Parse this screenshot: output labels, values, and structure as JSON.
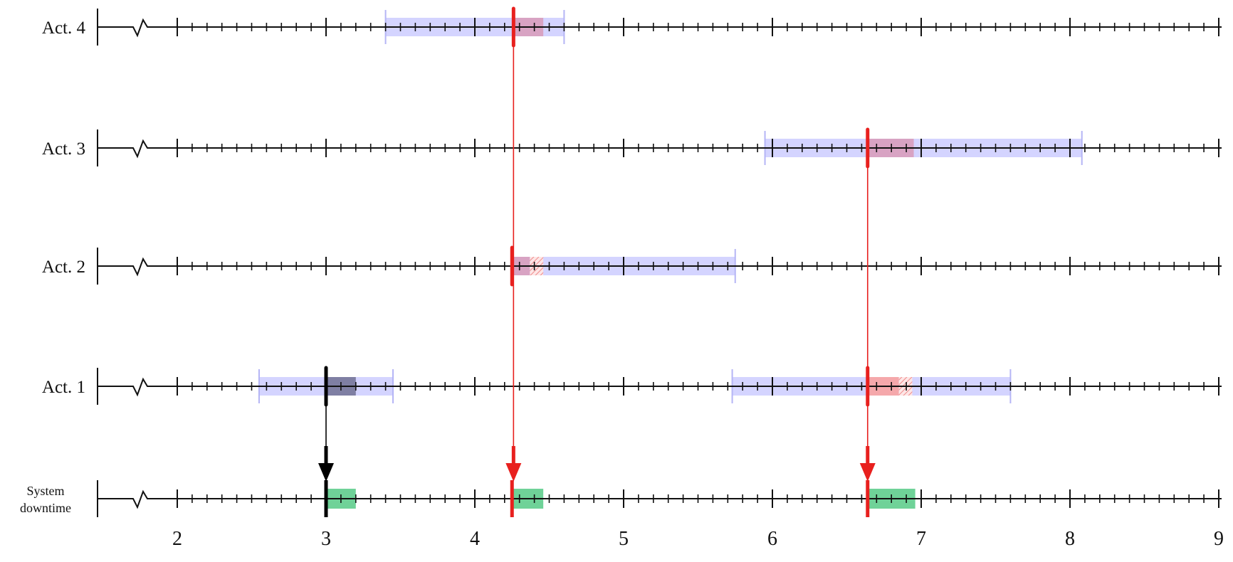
{
  "diagram": {
    "axis": {
      "min": 1.5,
      "max": 9,
      "major_ticks": [
        2,
        3,
        4,
        5,
        6,
        7,
        8,
        9
      ],
      "minor_step": 0.1,
      "labels": [
        "2",
        "3",
        "4",
        "5",
        "6",
        "7",
        "8",
        "9"
      ]
    },
    "rows": [
      {
        "id": "act4",
        "label": "Act. 4",
        "windows": [
          [
            3.4,
            4.6
          ]
        ],
        "events": [
          {
            "t": 4.26,
            "color": "#e8201e",
            "fail_end": 4.46
          }
        ]
      },
      {
        "id": "act3",
        "label": "Act. 3",
        "windows": [
          [
            5.95,
            8.08
          ]
        ],
        "events": [
          {
            "t": 6.64,
            "color": "#e8201e",
            "fail_end": 6.95
          }
        ]
      },
      {
        "id": "act2",
        "label": "Act. 2",
        "windows": [
          [
            4.25,
            5.75
          ]
        ],
        "events": [
          {
            "t": 4.25,
            "color": "#e8201e",
            "fail_end": 4.37,
            "hatch_end": 4.46
          }
        ]
      },
      {
        "id": "act1",
        "label": "Act. 1",
        "windows": [
          [
            2.55,
            3.45
          ],
          [
            5.73,
            7.6
          ]
        ],
        "events": [
          {
            "t": 3.0,
            "color": "#000000",
            "fail_end": 3.2,
            "fail_color": "#7a7a9e"
          },
          {
            "t": 6.64,
            "color": "#e8201e",
            "fail_end": 6.85,
            "fail_color": "#f7a5a6",
            "hatch_end": 6.94
          }
        ]
      },
      {
        "id": "downtime",
        "label_lines": [
          "System",
          "downtime"
        ],
        "downtimes": [
          [
            3.0,
            3.2
          ],
          [
            4.25,
            4.46
          ],
          [
            6.64,
            6.96
          ]
        ],
        "markers": [
          {
            "t": 3.0,
            "color": "#000000"
          },
          {
            "t": 4.25,
            "color": "#e8201e"
          },
          {
            "t": 6.64,
            "color": "#e8201e"
          }
        ]
      }
    ],
    "links": [
      {
        "t": 3.0,
        "from": "act1",
        "color": "#000000"
      },
      {
        "t": 4.26,
        "from": "act4",
        "color": "#e8201e"
      },
      {
        "t": 6.64,
        "from": "act3",
        "color": "#e8201e"
      }
    ],
    "colors": {
      "window": "#ccccff",
      "window_edge": "#b5b5f5",
      "fail": "#d8a0c0",
      "downtime": "#6fd298",
      "axis": "#111111"
    }
  }
}
